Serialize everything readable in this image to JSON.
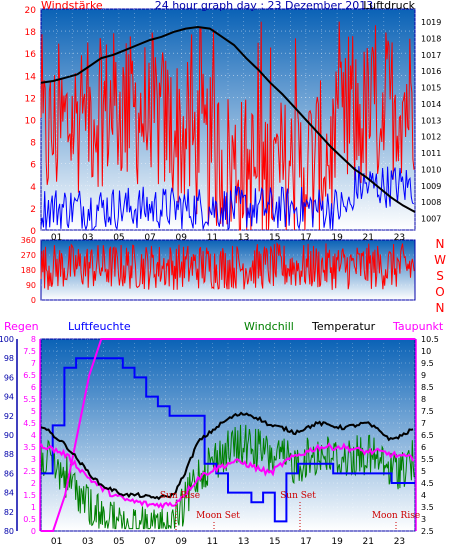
{
  "title": "24 hour graph day : 23 Dezember 2013",
  "colors": {
    "wind": "#ff0000",
    "wind_dir": "#ff0000",
    "pressure": "#000000",
    "gust": "#0000ff",
    "rain": "#ff00ff",
    "humidity": "#0000ff",
    "windchill": "#008000",
    "temperature": "#000000",
    "dewpoint": "#ff00ff",
    "bg_top": "#0a62b6",
    "bg_bottom": "#ffffff"
  },
  "chart_data": [
    {
      "type": "line",
      "name": "wind-pressure",
      "labels": {
        "left": "Windstärke",
        "right": "Luftdruck"
      },
      "x": [
        "01",
        "03",
        "05",
        "07",
        "09",
        "11",
        "13",
        "15",
        "17",
        "19",
        "21",
        "23"
      ],
      "yleft": {
        "ticks": [
          0,
          2,
          4,
          6,
          8,
          10,
          12,
          14,
          16,
          18,
          20
        ],
        "lim": [
          0,
          20
        ]
      },
      "yright": {
        "ticks": [
          1007,
          1008,
          1009,
          1010,
          1011,
          1012,
          1013,
          1014,
          1015,
          1016,
          1017,
          1018,
          1019
        ],
        "lim": [
          1006.3,
          1019.8
        ]
      },
      "pressure": [
        1015.3,
        1015.4,
        1015.6,
        1015.8,
        1016.3,
        1016.8,
        1017.0,
        1017.3,
        1017.6,
        1017.9,
        1018.1,
        1018.4,
        1018.6,
        1018.7,
        1018.6,
        1018.1,
        1017.6,
        1016.8,
        1016.1,
        1015.3,
        1014.6,
        1013.8,
        1013.0,
        1012.2,
        1011.4,
        1010.7,
        1010.0,
        1009.5,
        1008.9,
        1008.3,
        1007.8,
        1007.4
      ]
    },
    {
      "type": "line",
      "name": "wind-direction",
      "yticks": [
        0,
        90,
        180,
        270,
        360
      ],
      "compass": [
        "N",
        "W",
        "S",
        "O",
        "N"
      ],
      "ylim": [
        0,
        360
      ]
    },
    {
      "type": "line",
      "name": "rain-humidity-temperature",
      "legend": [
        "Regen",
        "Luftfeuchte",
        "Windchill",
        "Temperatur",
        "Taupunkt"
      ],
      "humidity_axis": {
        "ticks": [
          80,
          82,
          84,
          86,
          88,
          90,
          92,
          94,
          96,
          98,
          100
        ],
        "lim": [
          80,
          100
        ]
      },
      "rain_axis": {
        "ticks": [
          0,
          0.5,
          1,
          1.5,
          2,
          2.5,
          3,
          3.5,
          4,
          4.5,
          5,
          5.5,
          6,
          6.5,
          7,
          7.5,
          8
        ],
        "lim": [
          0,
          8
        ]
      },
      "temp_axis": {
        "ticks": [
          2.5,
          3,
          3.5,
          4,
          4.5,
          5,
          5.5,
          6,
          6.5,
          7,
          7.5,
          8,
          8.5,
          9,
          9.5,
          10,
          10.5
        ],
        "lim": [
          2.5,
          10.5
        ]
      },
      "annotations": [
        "Sun Rise",
        "Moon Set",
        "Sun Set",
        "Moon Rise"
      ],
      "temperature": [
        6.9,
        6.5,
        6.1,
        5.5,
        4.9,
        4.4,
        4.2,
        4.0,
        4.0,
        3.9,
        3.9,
        4.0,
        5.0,
        6.2,
        6.6,
        7.0,
        7.3,
        7.4,
        7.2,
        6.9,
        6.8,
        6.6,
        6.8,
        7.0,
        6.9,
        6.8,
        6.9,
        7.0,
        6.7,
        6.3,
        6.5,
        6.8
      ],
      "dewpoint": [
        6.1,
        5.9,
        5.7,
        5.2,
        4.7,
        4.3,
        4.0,
        3.8,
        3.7,
        3.6,
        3.6,
        3.6,
        4.1,
        4.7,
        5.0,
        5.2,
        5.4,
        5.3,
        5.1,
        4.9,
        5.3,
        5.6,
        5.8,
        6.0,
        6.0,
        6.0,
        5.9,
        5.8,
        5.8,
        5.7,
        5.6,
        5.5
      ],
      "humidity": [
        86,
        91,
        97,
        98,
        98,
        98,
        98,
        97,
        96,
        94,
        93,
        92,
        92,
        92,
        87,
        86,
        84,
        84,
        83,
        84,
        81,
        86,
        87,
        87,
        87,
        86,
        86,
        86,
        86,
        86,
        85,
        85
      ],
      "rain": [
        0,
        0,
        1.5,
        4,
        6.5,
        8,
        8,
        8,
        8,
        8,
        8,
        8,
        8,
        8,
        8,
        8,
        8,
        8,
        8,
        8,
        8,
        8,
        8,
        8,
        8,
        8,
        8,
        8,
        8,
        8,
        8,
        8
      ]
    }
  ]
}
